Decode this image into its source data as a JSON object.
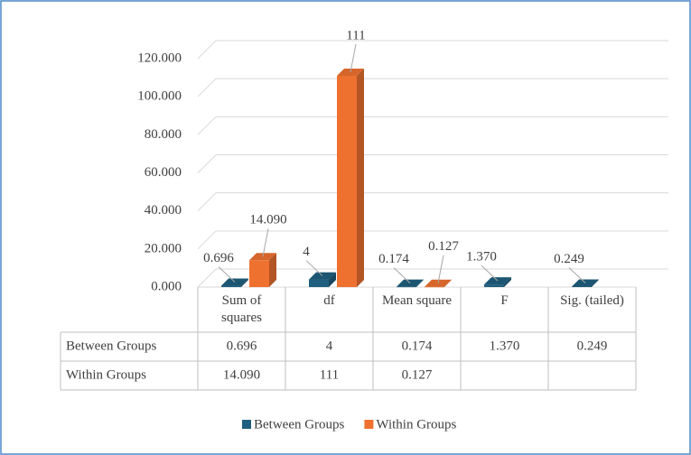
{
  "chart_data": {
    "type": "bar3d",
    "categories": [
      "Sum of squares",
      "df",
      "Mean square",
      "F",
      "Sig. (tailed)"
    ],
    "series": [
      {
        "name": "Between Groups",
        "color": "#1f5f7f",
        "values": [
          0.696,
          4,
          0.174,
          1.37,
          0.249
        ],
        "value_labels": [
          "0.696",
          "4",
          "0.174",
          "1.370",
          "0.249"
        ]
      },
      {
        "name": "Within Groups",
        "color": "#ee7130",
        "values": [
          14.09,
          111,
          0.127,
          null,
          null
        ],
        "value_labels": [
          "14.090",
          "111",
          "0.127",
          null,
          null
        ]
      }
    ],
    "ylim": [
      0,
      120
    ],
    "yticks": [
      {
        "value": 0,
        "label": "0.000"
      },
      {
        "value": 20,
        "label": "20.000"
      },
      {
        "value": 40,
        "label": "40.000"
      },
      {
        "value": 60,
        "label": "60.000"
      },
      {
        "value": 80,
        "label": "80.000"
      },
      {
        "value": 100,
        "label": "100.000"
      },
      {
        "value": 120,
        "label": "120.000"
      }
    ],
    "grid": true,
    "legend": "bottom"
  }
}
